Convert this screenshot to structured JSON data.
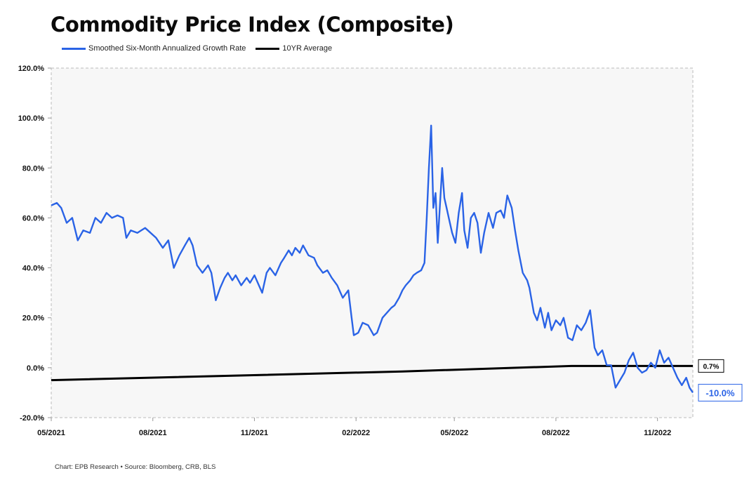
{
  "title": "Commodity Price Index (Composite)",
  "footer": "Chart: EPB Research  •  Source: Bloomberg, CRB, BLS",
  "colors": {
    "series_blue": "#2a63e6",
    "average_black": "#000000",
    "plot_bg": "#f7f7f7"
  },
  "chart_data": {
    "type": "line",
    "title": "Commodity Price Index (Composite)",
    "xlabel": "",
    "ylabel": "",
    "ylim": [
      -20,
      120
    ],
    "xlim": [
      "2021-05",
      "2023-01"
    ],
    "yticks": [
      "120.0%",
      "100.0%",
      "80.0%",
      "60.0%",
      "40.0%",
      "20.0%",
      "0.0%",
      "-20.0%"
    ],
    "xticks": [
      "05/2021",
      "08/2021",
      "11/2021",
      "02/2022",
      "05/2022",
      "08/2022",
      "11/2022"
    ],
    "grid": false,
    "legend_position": "top-left",
    "series": [
      {
        "name": "Smoothed Six-Month Annualized Growth Rate",
        "end_label": "-10.0%",
        "points": [
          [
            "2021-05-01",
            65
          ],
          [
            "2021-05-06",
            66
          ],
          [
            "2021-05-10",
            64
          ],
          [
            "2021-05-15",
            58
          ],
          [
            "2021-05-20",
            60
          ],
          [
            "2021-05-25",
            51
          ],
          [
            "2021-05-30",
            55
          ],
          [
            "2021-06-05",
            54
          ],
          [
            "2021-06-10",
            60
          ],
          [
            "2021-06-15",
            58
          ],
          [
            "2021-06-20",
            62
          ],
          [
            "2021-06-25",
            60
          ],
          [
            "2021-06-30",
            61
          ],
          [
            "2021-07-05",
            60
          ],
          [
            "2021-07-08",
            52
          ],
          [
            "2021-07-12",
            55
          ],
          [
            "2021-07-18",
            54
          ],
          [
            "2021-07-25",
            56
          ],
          [
            "2021-07-30",
            54
          ],
          [
            "2021-08-04",
            52
          ],
          [
            "2021-08-10",
            48
          ],
          [
            "2021-08-15",
            51
          ],
          [
            "2021-08-20",
            40
          ],
          [
            "2021-08-25",
            45
          ],
          [
            "2021-08-30",
            49
          ],
          [
            "2021-09-03",
            52
          ],
          [
            "2021-09-06",
            49
          ],
          [
            "2021-09-10",
            41
          ],
          [
            "2021-09-15",
            38
          ],
          [
            "2021-09-20",
            41
          ],
          [
            "2021-09-23",
            38
          ],
          [
            "2021-09-27",
            27
          ],
          [
            "2021-10-01",
            32
          ],
          [
            "2021-10-05",
            36
          ],
          [
            "2021-10-08",
            38
          ],
          [
            "2021-10-12",
            35
          ],
          [
            "2021-10-15",
            37
          ],
          [
            "2021-10-20",
            33
          ],
          [
            "2021-10-25",
            36
          ],
          [
            "2021-10-28",
            34
          ],
          [
            "2021-11-01",
            37
          ],
          [
            "2021-11-05",
            33
          ],
          [
            "2021-11-08",
            30
          ],
          [
            "2021-11-12",
            38
          ],
          [
            "2021-11-15",
            40
          ],
          [
            "2021-11-20",
            37
          ],
          [
            "2021-11-25",
            42
          ],
          [
            "2021-11-28",
            44
          ],
          [
            "2021-12-02",
            47
          ],
          [
            "2021-12-05",
            45
          ],
          [
            "2021-12-08",
            48
          ],
          [
            "2021-12-12",
            46
          ],
          [
            "2021-12-15",
            49
          ],
          [
            "2021-12-20",
            45
          ],
          [
            "2021-12-25",
            44
          ],
          [
            "2021-12-28",
            41
          ],
          [
            "2022-01-02",
            38
          ],
          [
            "2022-01-06",
            39
          ],
          [
            "2022-01-10",
            36
          ],
          [
            "2022-01-15",
            33
          ],
          [
            "2022-01-20",
            28
          ],
          [
            "2022-01-25",
            31
          ],
          [
            "2022-01-28",
            20
          ],
          [
            "2022-01-30",
            13
          ],
          [
            "2022-02-03",
            14
          ],
          [
            "2022-02-07",
            18
          ],
          [
            "2022-02-12",
            17
          ],
          [
            "2022-02-17",
            13
          ],
          [
            "2022-02-20",
            14
          ],
          [
            "2022-02-25",
            20
          ],
          [
            "2022-03-01",
            22
          ],
          [
            "2022-03-05",
            24
          ],
          [
            "2022-03-08",
            25
          ],
          [
            "2022-03-12",
            28
          ],
          [
            "2022-03-15",
            31
          ],
          [
            "2022-03-18",
            33
          ],
          [
            "2022-03-22",
            35
          ],
          [
            "2022-03-25",
            37
          ],
          [
            "2022-03-28",
            38
          ],
          [
            "2022-04-01",
            39
          ],
          [
            "2022-04-04",
            42
          ],
          [
            "2022-04-06",
            60
          ],
          [
            "2022-04-08",
            80
          ],
          [
            "2022-04-10",
            97
          ],
          [
            "2022-04-12",
            64
          ],
          [
            "2022-04-14",
            70
          ],
          [
            "2022-04-16",
            50
          ],
          [
            "2022-04-18",
            65
          ],
          [
            "2022-04-20",
            80
          ],
          [
            "2022-04-22",
            68
          ],
          [
            "2022-04-24",
            64
          ],
          [
            "2022-04-26",
            60
          ],
          [
            "2022-04-29",
            54
          ],
          [
            "2022-05-02",
            50
          ],
          [
            "2022-05-05",
            62
          ],
          [
            "2022-05-08",
            70
          ],
          [
            "2022-05-10",
            55
          ],
          [
            "2022-05-13",
            48
          ],
          [
            "2022-05-16",
            60
          ],
          [
            "2022-05-19",
            62
          ],
          [
            "2022-05-22",
            58
          ],
          [
            "2022-05-25",
            46
          ],
          [
            "2022-05-28",
            54
          ],
          [
            "2022-06-01",
            62
          ],
          [
            "2022-06-05",
            56
          ],
          [
            "2022-06-08",
            62
          ],
          [
            "2022-06-12",
            63
          ],
          [
            "2022-06-15",
            60
          ],
          [
            "2022-06-18",
            69
          ],
          [
            "2022-06-22",
            64
          ],
          [
            "2022-06-25",
            55
          ],
          [
            "2022-06-28",
            47
          ],
          [
            "2022-07-02",
            38
          ],
          [
            "2022-07-06",
            35
          ],
          [
            "2022-07-08",
            32
          ],
          [
            "2022-07-12",
            22
          ],
          [
            "2022-07-15",
            19
          ],
          [
            "2022-07-18",
            24
          ],
          [
            "2022-07-22",
            16
          ],
          [
            "2022-07-25",
            22
          ],
          [
            "2022-07-28",
            15
          ],
          [
            "2022-08-01",
            19
          ],
          [
            "2022-08-05",
            17
          ],
          [
            "2022-08-08",
            20
          ],
          [
            "2022-08-12",
            12
          ],
          [
            "2022-08-16",
            11
          ],
          [
            "2022-08-20",
            17
          ],
          [
            "2022-08-24",
            15
          ],
          [
            "2022-08-28",
            18
          ],
          [
            "2022-09-01",
            23
          ],
          [
            "2022-09-05",
            8
          ],
          [
            "2022-09-08",
            5
          ],
          [
            "2022-09-12",
            7
          ],
          [
            "2022-09-16",
            1
          ],
          [
            "2022-09-20",
            1
          ],
          [
            "2022-09-24",
            -8
          ],
          [
            "2022-09-28",
            -5
          ],
          [
            "2022-10-02",
            -2
          ],
          [
            "2022-10-06",
            3
          ],
          [
            "2022-10-10",
            6
          ],
          [
            "2022-10-14",
            0
          ],
          [
            "2022-10-18",
            -2
          ],
          [
            "2022-10-22",
            -1
          ],
          [
            "2022-10-26",
            2
          ],
          [
            "2022-10-30",
            0
          ],
          [
            "2022-11-03",
            7
          ],
          [
            "2022-11-07",
            2
          ],
          [
            "2022-11-11",
            4
          ],
          [
            "2022-11-15",
            0
          ],
          [
            "2022-11-19",
            -4
          ],
          [
            "2022-11-23",
            -7
          ],
          [
            "2022-11-27",
            -4
          ],
          [
            "2022-11-30",
            -8
          ],
          [
            "2022-12-03",
            -10
          ]
        ]
      },
      {
        "name": "10YR Average",
        "end_label": "0.7%",
        "points": [
          [
            "2021-05-01",
            -5
          ],
          [
            "2022-03-15",
            -1.5
          ],
          [
            "2022-08-15",
            0.7
          ],
          [
            "2022-12-03",
            0.7
          ]
        ]
      }
    ]
  }
}
